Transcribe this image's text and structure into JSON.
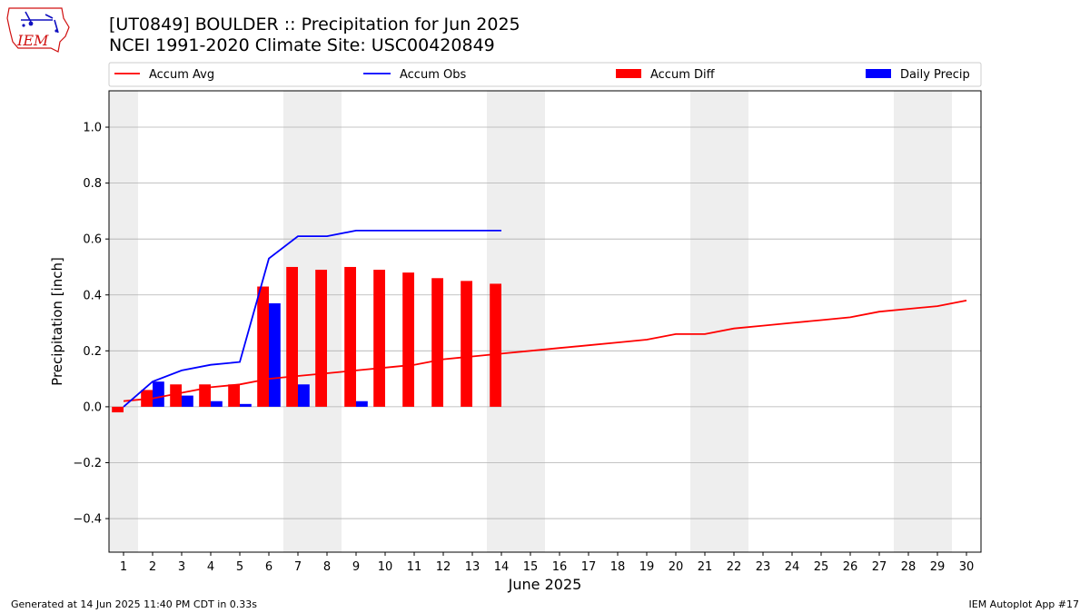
{
  "title_line1": "[UT0849] BOULDER :: Precipitation for Jun 2025",
  "title_line2": "NCEI 1991-2020 Climate Site: USC00420849",
  "logo_text": "IEM",
  "footer_left": "Generated at 14 Jun 2025 11:40 PM CDT in 0.33s",
  "footer_right": "IEM Autoplot App #17",
  "colors": {
    "avg": "#ff0000",
    "obs": "#0000ff",
    "diff": "#ff0000",
    "daily": "#0000ff",
    "weekend": "#eeeeee",
    "grid": "#b0b0b0"
  },
  "chart_data": {
    "type": "bar",
    "xlabel": "June 2025",
    "ylabel": "Precipitation [inch]",
    "xlim": [
      0.5,
      30.5
    ],
    "ylim": [
      -0.52,
      1.13
    ],
    "yticks": [
      -0.4,
      -0.2,
      0.0,
      0.2,
      0.4,
      0.6,
      0.8,
      1.0
    ],
    "ytick_labels": [
      "−0.4",
      "−0.2",
      "0.0",
      "0.2",
      "0.4",
      "0.6",
      "0.8",
      "1.0"
    ],
    "days": [
      1,
      2,
      3,
      4,
      5,
      6,
      7,
      8,
      9,
      10,
      11,
      12,
      13,
      14,
      15,
      16,
      17,
      18,
      19,
      20,
      21,
      22,
      23,
      24,
      25,
      26,
      27,
      28,
      29,
      30
    ],
    "weekend_days": [
      1,
      7,
      8,
      14,
      15,
      21,
      22,
      28,
      29
    ],
    "grid": "horizontal",
    "legend_position": "top",
    "legend": [
      "Accum Avg",
      "Accum Obs",
      "Accum Diff",
      "Daily Precip"
    ],
    "accum_avg": [
      0.02,
      0.03,
      0.05,
      0.07,
      0.08,
      0.1,
      0.11,
      0.12,
      0.13,
      0.14,
      0.15,
      0.17,
      0.18,
      0.19,
      0.2,
      0.21,
      0.22,
      0.23,
      0.24,
      0.26,
      0.26,
      0.28,
      0.29,
      0.3,
      0.31,
      0.32,
      0.34,
      0.35,
      0.36,
      0.38
    ],
    "accum_obs": [
      0.0,
      0.09,
      0.13,
      0.15,
      0.16,
      0.53,
      0.61,
      0.61,
      0.63,
      0.63,
      0.63,
      0.63,
      0.63,
      0.63
    ],
    "accum_diff": [
      -0.02,
      0.06,
      0.08,
      0.08,
      0.08,
      0.43,
      0.5,
      0.49,
      0.5,
      0.49,
      0.48,
      0.46,
      0.45,
      0.44
    ],
    "daily_precip": [
      0.0,
      0.09,
      0.04,
      0.02,
      0.01,
      0.37,
      0.08,
      0.0,
      0.02,
      0.0,
      0.0,
      0.0,
      0.0,
      0.0
    ]
  }
}
